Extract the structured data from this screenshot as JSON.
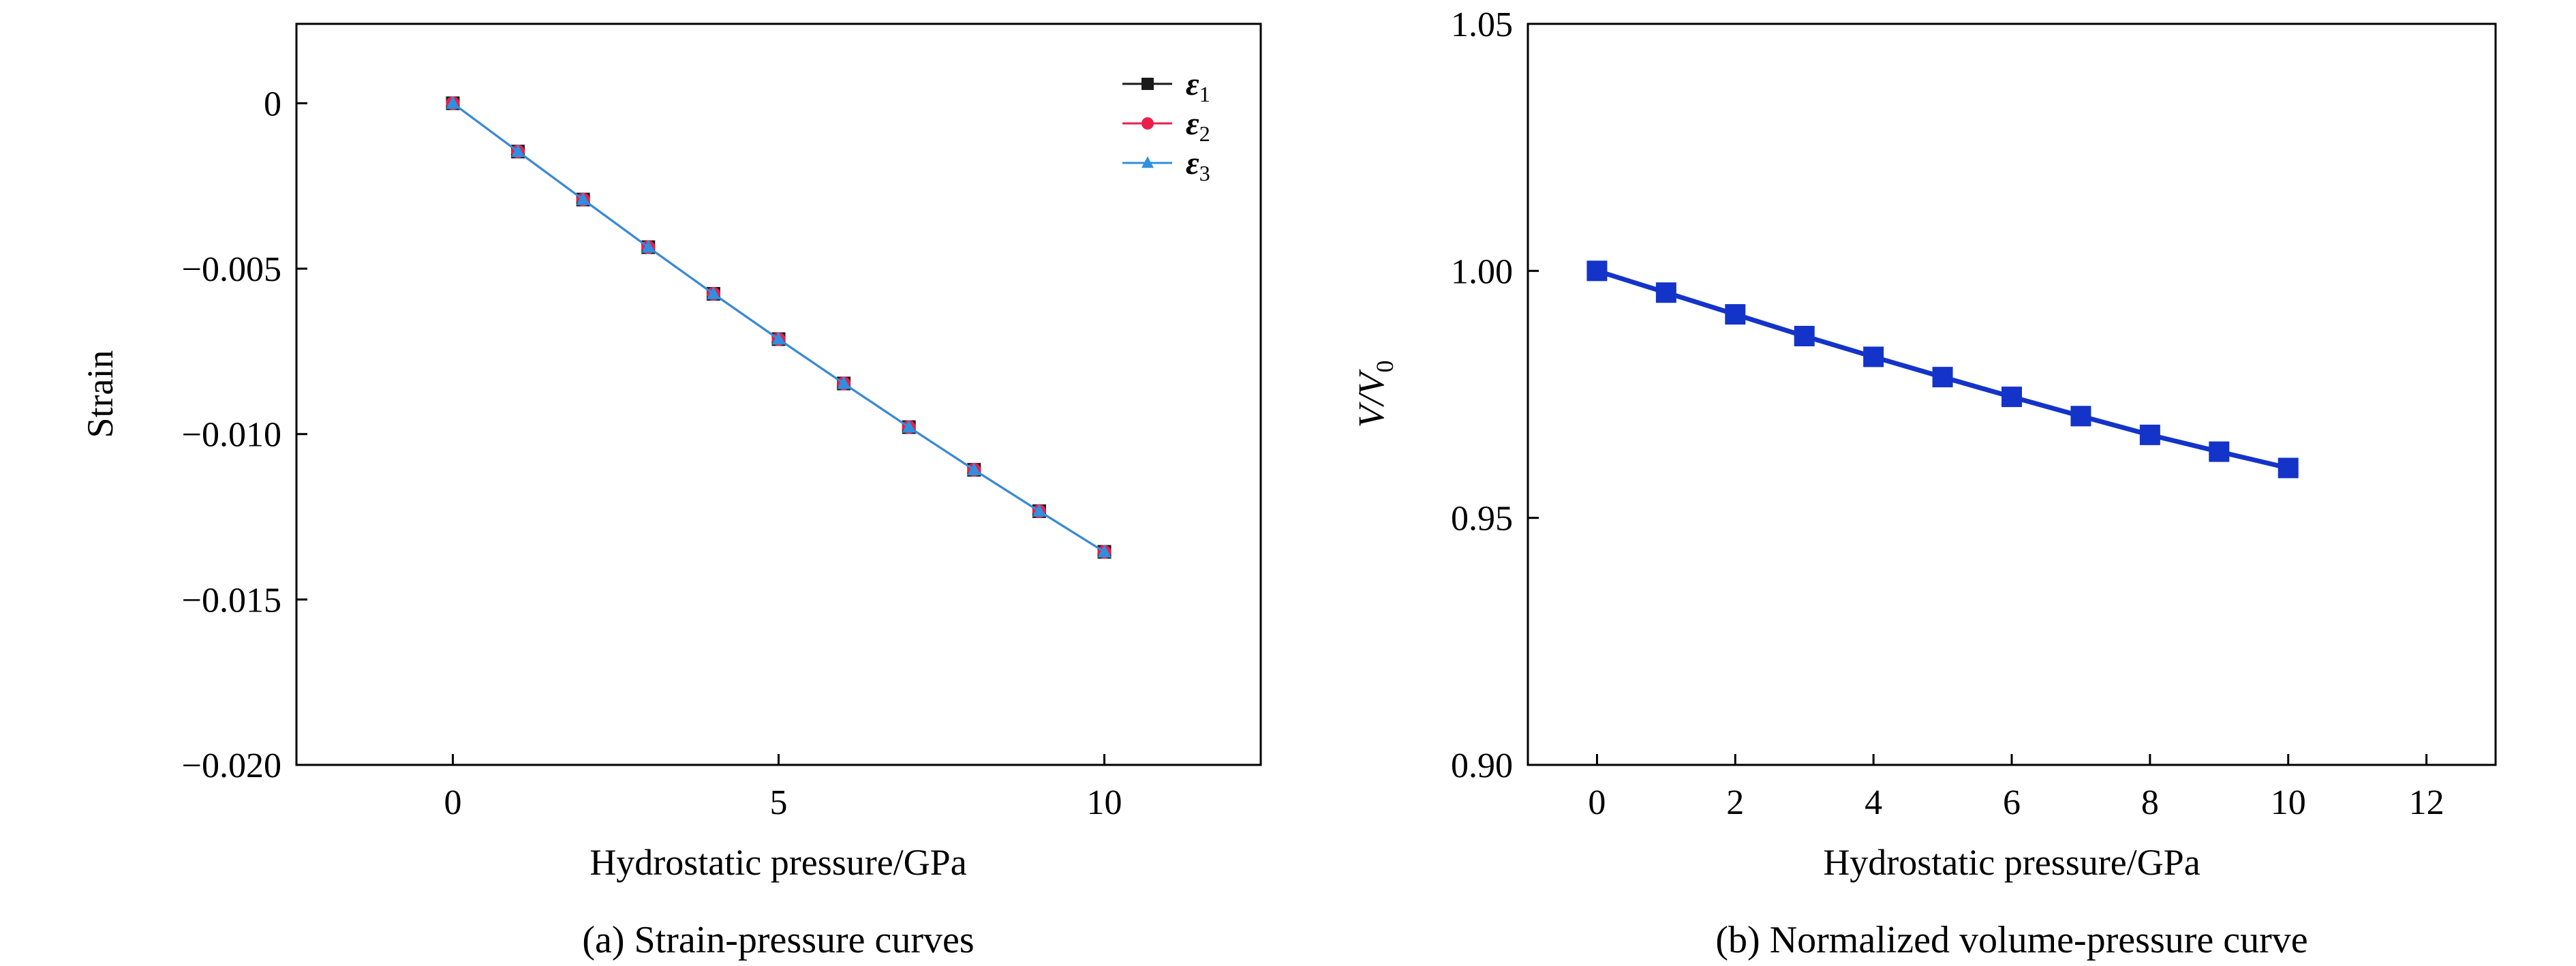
{
  "colors": {
    "eps1": "#1a1a1a",
    "eps2": "#e8204a",
    "eps3": "#2f8fe0",
    "volume": "#1433c8"
  },
  "chart_data": [
    {
      "type": "line",
      "caption": "(a) Strain-pressure curves",
      "xlabel": "Hydrostatic pressure/GPa",
      "ylabel": "Strain",
      "xlim": [
        -2.4,
        12.4
      ],
      "ylim": [
        -0.02,
        0.0024
      ],
      "xticks": [
        0,
        5,
        10
      ],
      "yticks": [
        0,
        -0.005,
        -0.01,
        -0.015,
        -0.02
      ],
      "ytick_labels": [
        "0",
        "−0.005",
        "−0.010",
        "−0.015",
        "−0.020"
      ],
      "grid": false,
      "legend_position": "top-right",
      "x": [
        0,
        1,
        2,
        3,
        4,
        5,
        6,
        7,
        8,
        9,
        10
      ],
      "series": [
        {
          "name": "ε",
          "sub": "1",
          "marker": "square",
          "color_key": "eps1",
          "values": [
            0,
            -0.00146,
            -0.00291,
            -0.00435,
            -0.00576,
            -0.00713,
            -0.00847,
            -0.00979,
            -0.01108,
            -0.01233,
            -0.01356
          ]
        },
        {
          "name": "ε",
          "sub": "2",
          "marker": "circle",
          "color_key": "eps2",
          "values": [
            0,
            -0.00146,
            -0.00291,
            -0.00435,
            -0.00576,
            -0.00713,
            -0.00847,
            -0.00979,
            -0.01108,
            -0.01233,
            -0.01356
          ]
        },
        {
          "name": "ε",
          "sub": "3",
          "marker": "triangle",
          "color_key": "eps3",
          "values": [
            0,
            -0.00146,
            -0.00291,
            -0.00435,
            -0.00576,
            -0.00713,
            -0.00847,
            -0.00979,
            -0.01108,
            -0.01233,
            -0.01356
          ]
        }
      ]
    },
    {
      "type": "line",
      "caption": "(b) Normalized volume-pressure curve",
      "xlabel": "Hydrostatic pressure/GPa",
      "ylabel": "V/V",
      "ylabel_sub": "0",
      "xlim": [
        -1,
        13
      ],
      "ylim": [
        0.9,
        1.05
      ],
      "xticks": [
        0,
        2,
        4,
        6,
        8,
        10,
        12
      ],
      "yticks": [
        0.9,
        0.95,
        1.0,
        1.05
      ],
      "ytick_labels": [
        "0.90",
        "0.95",
        "1.00",
        "1.05"
      ],
      "grid": false,
      "x": [
        0,
        1,
        2,
        3,
        4,
        5,
        6,
        7,
        8,
        9,
        10
      ],
      "series": [
        {
          "marker": "square",
          "color_key": "volume",
          "values": [
            1.0,
            0.9956,
            0.9912,
            0.9868,
            0.9826,
            0.9785,
            0.9745,
            0.9706,
            0.9668,
            0.9634,
            0.9601
          ]
        }
      ]
    }
  ]
}
